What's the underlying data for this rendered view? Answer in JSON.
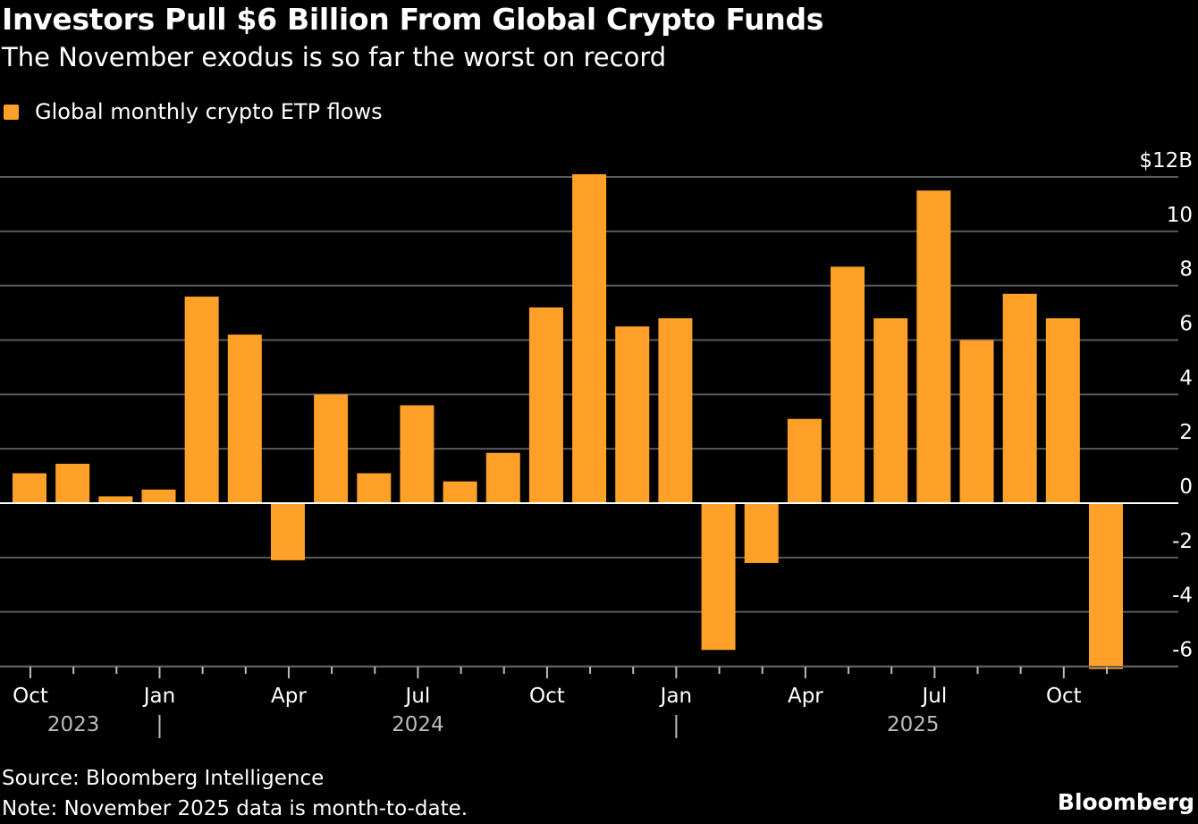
{
  "title": "Investors Pull $6 Billion From Global Crypto Funds",
  "subtitle": "The November exodus is so far the worst on record",
  "footer": {
    "source": "Source: Bloomberg Intelligence",
    "note": "Note: November 2025 data is month-to-date.",
    "logo": "Bloomberg"
  },
  "chart_data": {
    "type": "bar",
    "title": "Investors Pull $6 Billion From Global Crypto Funds",
    "legend": {
      "position": "top-left",
      "entries": [
        "Global monthly crypto ETP flows"
      ]
    },
    "series": [
      {
        "name": "Global monthly crypto ETP flows",
        "color": "#FFA028",
        "values": [
          1.1,
          1.45,
          0.25,
          0.5,
          7.6,
          6.2,
          -2.1,
          4.0,
          1.1,
          3.6,
          0.8,
          1.85,
          7.2,
          12.1,
          6.5,
          6.8,
          -5.4,
          -2.2,
          3.1,
          8.7,
          6.8,
          11.5,
          6.0,
          7.7,
          6.8,
          -6.1
        ]
      }
    ],
    "categories": [
      "Oct 2023",
      "Nov 2023",
      "Dec 2023",
      "Jan 2024",
      "Feb 2024",
      "Mar 2024",
      "Apr 2024",
      "May 2024",
      "Jun 2024",
      "Jul 2024",
      "Aug 2024",
      "Sep 2024",
      "Oct 2024",
      "Nov 2024",
      "Dec 2024",
      "Jan 2025",
      "Feb 2025",
      "Mar 2025",
      "Apr 2025",
      "May 2025",
      "Jun 2025",
      "Jul 2025",
      "Aug 2025",
      "Sep 2025",
      "Oct 2025",
      "Nov 2025"
    ],
    "x_tick_labels": [
      {
        "index": 0,
        "label": "Oct"
      },
      {
        "index": 3,
        "label": "Jan"
      },
      {
        "index": 6,
        "label": "Apr"
      },
      {
        "index": 9,
        "label": "Jul"
      },
      {
        "index": 12,
        "label": "Oct"
      },
      {
        "index": 15,
        "label": "Jan"
      },
      {
        "index": 18,
        "label": "Apr"
      },
      {
        "index": 21,
        "label": "Jul"
      },
      {
        "index": 24,
        "label": "Oct"
      }
    ],
    "year_labels": [
      {
        "label": "2023",
        "center_index": 1
      },
      {
        "label": "2024",
        "center_index": 9
      },
      {
        "label": "2025",
        "center_index": 20.5
      }
    ],
    "year_separators_at_index": [
      3,
      15
    ],
    "y_ticks": [
      12,
      10,
      8,
      6,
      4,
      2,
      0,
      -2,
      -4,
      -6
    ],
    "y_tick_labels": [
      "$12B",
      "10",
      "8",
      "6",
      "4",
      "2",
      "0",
      "-2",
      "-4",
      "-6"
    ],
    "ylim": [
      -6,
      12
    ],
    "y_axis_position": "right",
    "grid": true,
    "xlabel": "",
    "ylabel": ""
  }
}
